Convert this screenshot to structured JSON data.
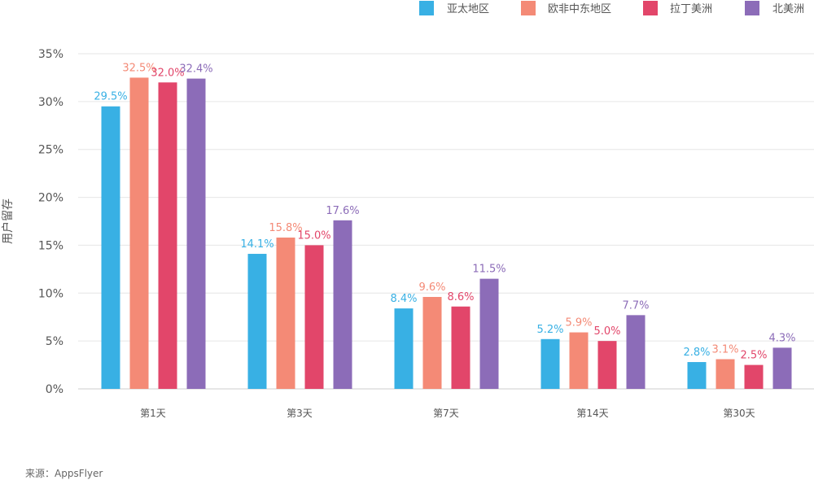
{
  "chart_data": {
    "type": "bar",
    "ylabel": "用户留存",
    "ylim": [
      0,
      35
    ],
    "yticks": [
      0,
      5,
      10,
      15,
      20,
      25,
      30,
      35
    ],
    "ytick_labels": [
      "0%",
      "5%",
      "10%",
      "15%",
      "20%",
      "25%",
      "30%",
      "35%"
    ],
    "grid": true,
    "legend_position": "top-right",
    "categories": [
      "第1天",
      "第3天",
      "第7天",
      "第14天",
      "第30天"
    ],
    "series": [
      {
        "name": "亚太地区",
        "color": "#38b0e4",
        "values": [
          29.5,
          14.1,
          8.4,
          5.2,
          2.8
        ],
        "labels": [
          "29.5%",
          "14.1%",
          "8.4%",
          "5.2%",
          "2.8%"
        ]
      },
      {
        "name": "欧非中东地区",
        "color": "#f48a76",
        "values": [
          32.5,
          15.8,
          9.6,
          5.9,
          3.1
        ],
        "labels": [
          "32.5%",
          "15.8%",
          "9.6%",
          "5.9%",
          "3.1%"
        ]
      },
      {
        "name": "拉丁美洲",
        "color": "#e2466a",
        "values": [
          32.0,
          15.0,
          8.6,
          5.0,
          2.5
        ],
        "labels": [
          "32.0%",
          "15.0%",
          "8.6%",
          "5.0%",
          "2.5%"
        ]
      },
      {
        "name": "北美洲",
        "color": "#8c6cb8",
        "values": [
          32.4,
          17.6,
          11.5,
          7.7,
          4.3
        ],
        "labels": [
          "32.4%",
          "17.6%",
          "11.5%",
          "7.7%",
          "4.3%"
        ]
      }
    ],
    "source": "来源：AppsFlyer"
  }
}
